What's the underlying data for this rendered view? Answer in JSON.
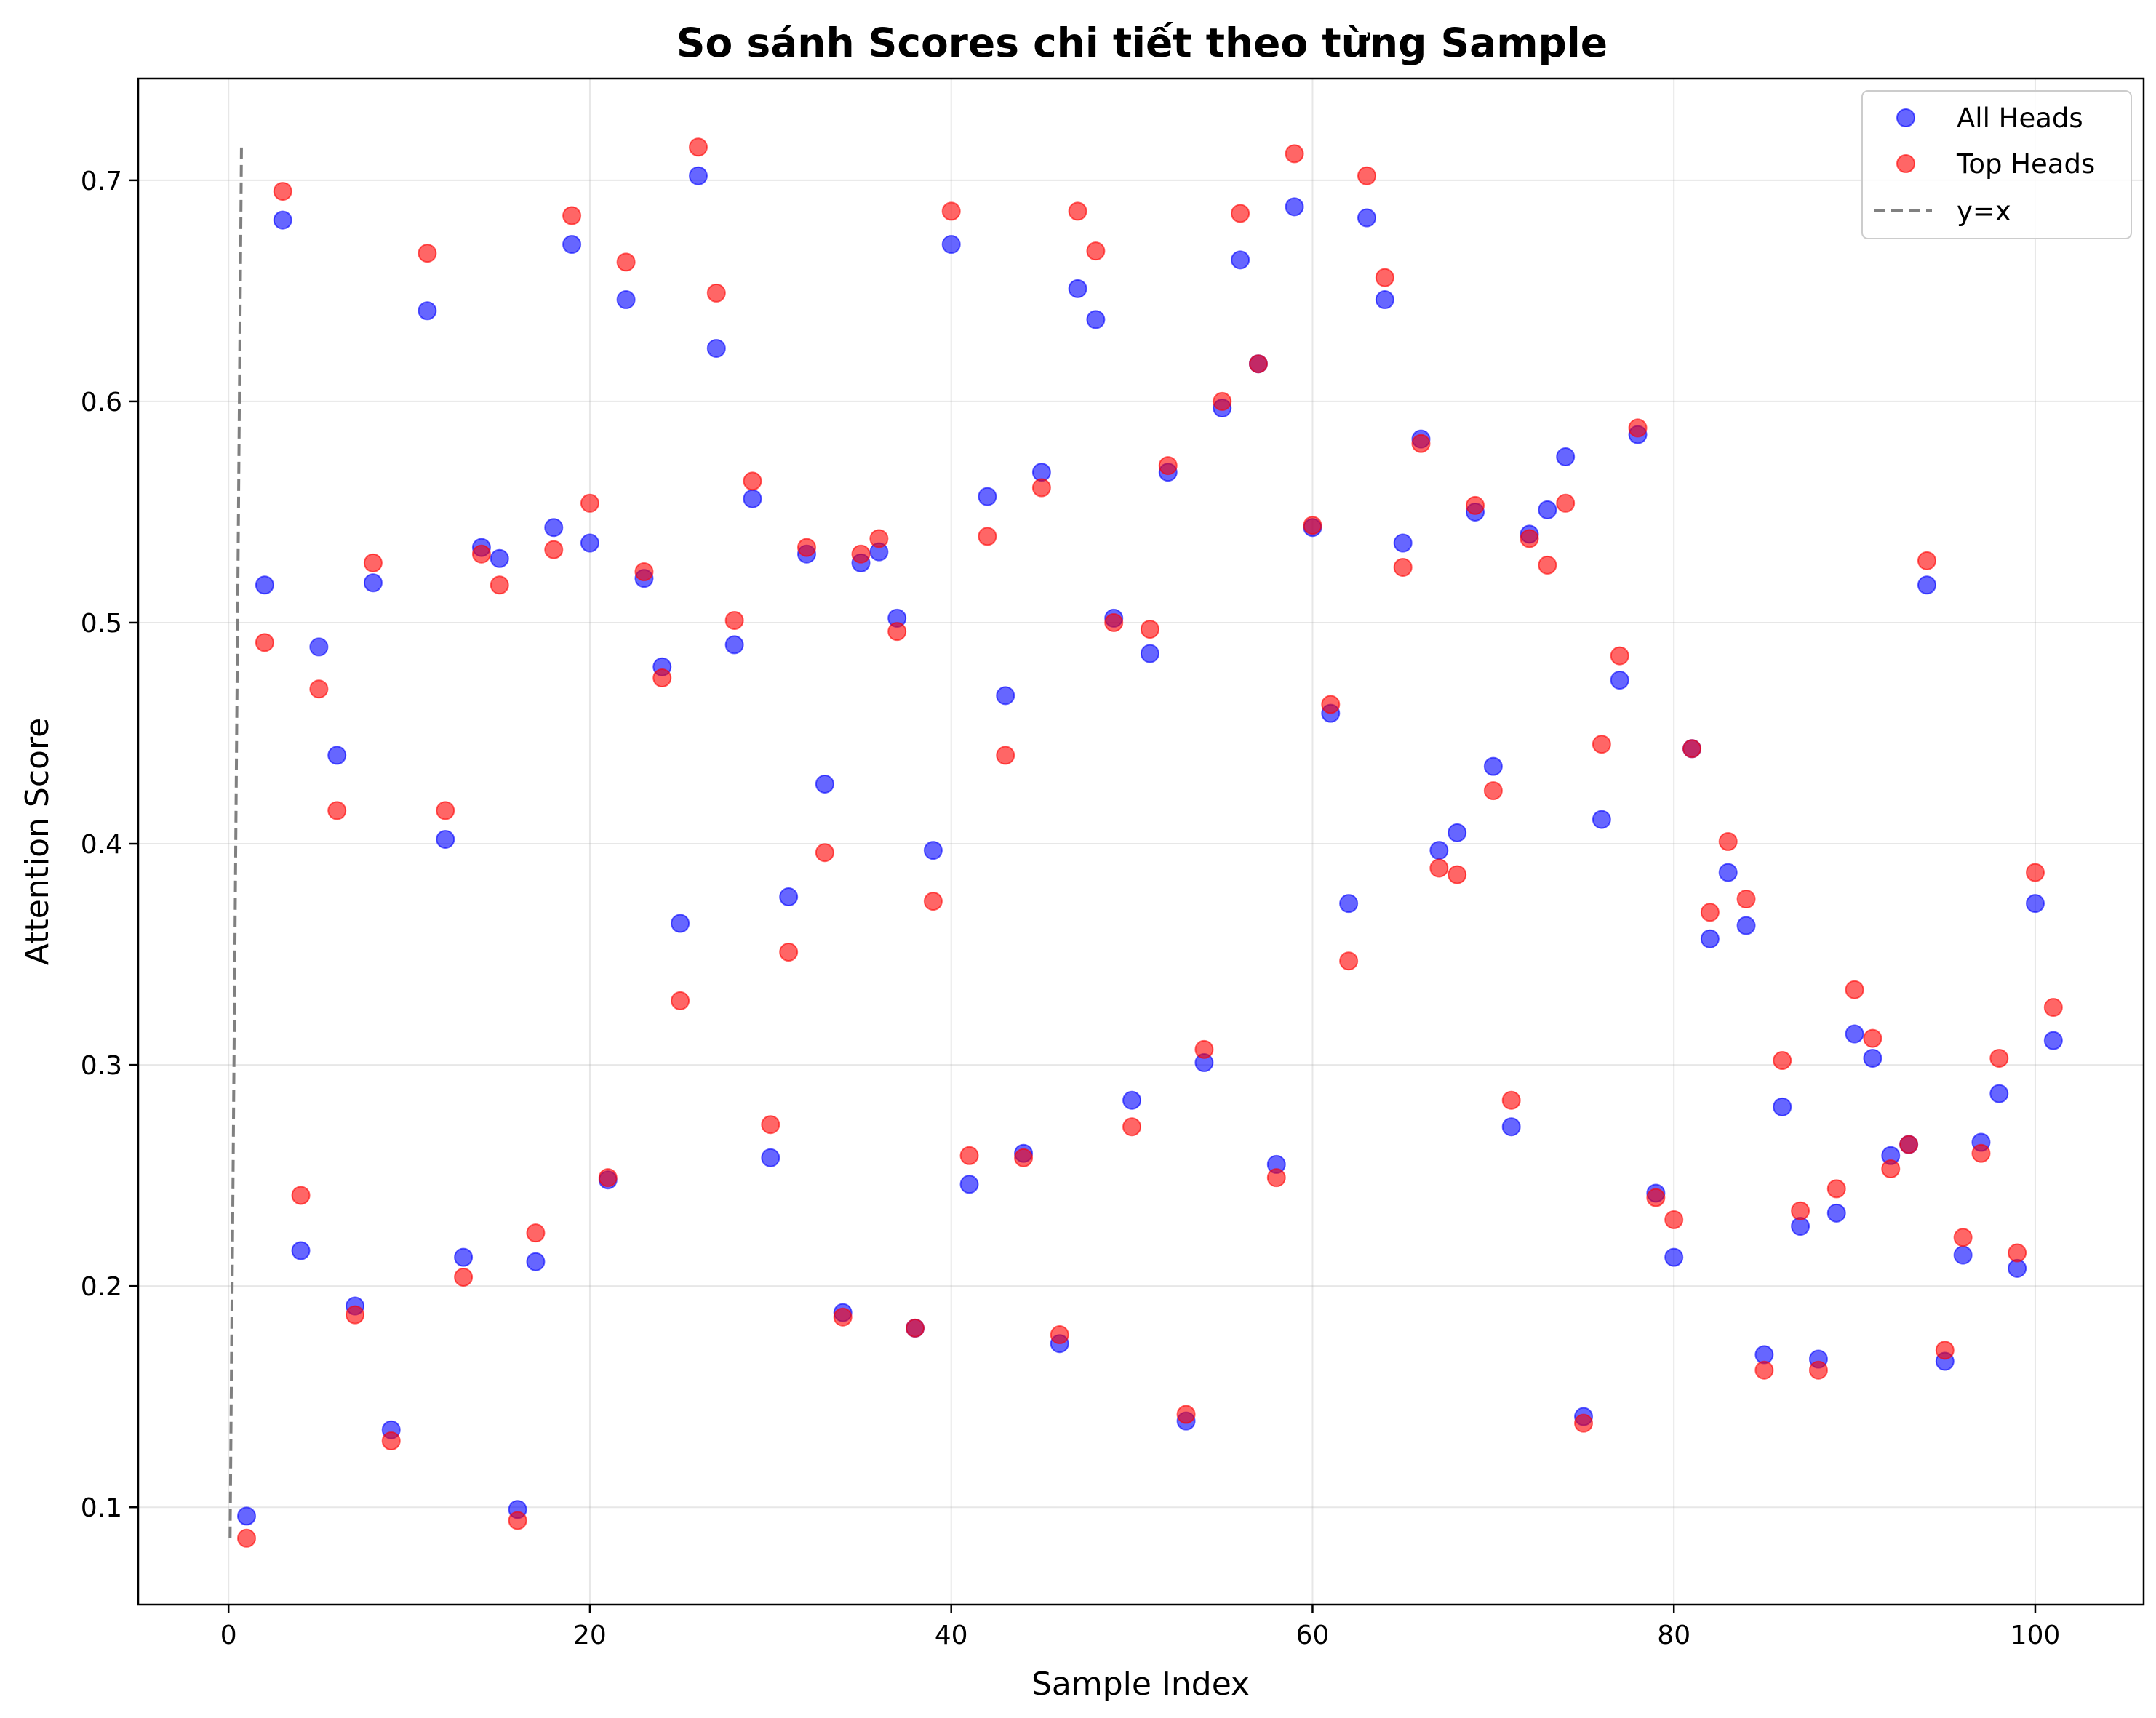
{
  "chart_data": {
    "type": "scatter",
    "title": "So sánh Scores chi tiết theo từng Sample",
    "xlabel": "Sample Index",
    "ylabel": "Attention Score",
    "xlim": [
      -5,
      106
    ],
    "ylim": [
      0.056,
      0.746
    ],
    "xticks": [
      0,
      20,
      40,
      60,
      80,
      100
    ],
    "yticks": [
      0.1,
      0.2,
      0.3,
      0.4,
      0.5,
      0.6,
      0.7
    ],
    "grid": true,
    "legend_position": "top-right",
    "x": [
      1,
      2,
      3,
      4,
      5,
      6,
      7,
      8,
      9,
      11,
      12,
      13,
      14,
      15,
      16,
      17,
      18,
      19,
      20,
      21,
      22,
      23,
      24,
      25,
      26,
      27,
      28,
      29,
      30,
      31,
      32,
      33,
      34,
      35,
      36,
      37,
      38,
      39,
      40,
      41,
      42,
      43,
      44,
      45,
      46,
      47,
      48,
      49,
      50,
      51,
      52,
      53,
      54,
      55,
      56,
      57,
      58,
      59,
      60,
      61,
      62,
      63,
      64,
      65,
      66,
      67,
      68,
      69,
      70,
      71,
      72,
      73,
      74,
      75,
      76,
      77,
      78,
      79,
      80,
      81,
      82,
      83,
      84,
      85,
      86,
      87,
      88,
      89,
      90,
      91,
      92,
      93,
      94,
      95,
      96,
      97,
      98,
      99,
      100,
      101
    ],
    "series": [
      {
        "name": "All Heads",
        "color": "#0000ff",
        "values": [
          0.096,
          0.517,
          0.682,
          0.216,
          0.489,
          0.44,
          0.191,
          0.518,
          0.135,
          0.641,
          0.402,
          0.213,
          0.534,
          0.529,
          0.099,
          0.211,
          0.543,
          0.671,
          0.536,
          0.248,
          0.646,
          0.52,
          0.48,
          0.364,
          0.702,
          0.624,
          0.49,
          0.556,
          0.258,
          0.376,
          0.531,
          0.427,
          0.188,
          0.527,
          0.532,
          0.502,
          0.181,
          0.397,
          0.671,
          0.246,
          0.557,
          0.467,
          0.26,
          0.568,
          0.174,
          0.651,
          0.637,
          0.502,
          0.284,
          0.486,
          0.568,
          0.139,
          0.301,
          0.597,
          0.664,
          0.617,
          0.255,
          0.688,
          0.543,
          0.459,
          0.373,
          0.683,
          0.646,
          0.536,
          0.583,
          0.397,
          0.405,
          0.55,
          0.435,
          0.272,
          0.54,
          0.551,
          0.575,
          0.141,
          0.411,
          0.474,
          0.585,
          0.242,
          0.213,
          0.443,
          0.357,
          0.387,
          0.363,
          0.169,
          0.281,
          0.227,
          0.167,
          0.233,
          0.314,
          0.303,
          0.259,
          0.264,
          0.517,
          0.166,
          0.214,
          0.265,
          0.287,
          0.208,
          0.373,
          0.311
        ]
      },
      {
        "name": "Top Heads",
        "color": "#ff0000",
        "values": [
          0.086,
          0.491,
          0.695,
          0.241,
          0.47,
          0.415,
          0.187,
          0.527,
          0.13,
          0.667,
          0.415,
          0.204,
          0.531,
          0.517,
          0.094,
          0.224,
          0.533,
          0.684,
          0.554,
          0.249,
          0.663,
          0.523,
          0.475,
          0.329,
          0.715,
          0.649,
          0.501,
          0.564,
          0.273,
          0.351,
          0.534,
          0.396,
          0.186,
          0.531,
          0.538,
          0.496,
          0.181,
          0.374,
          0.686,
          0.259,
          0.539,
          0.44,
          0.258,
          0.561,
          0.178,
          0.686,
          0.668,
          0.5,
          0.272,
          0.497,
          0.571,
          0.142,
          0.307,
          0.6,
          0.685,
          0.617,
          0.249,
          0.712,
          0.544,
          0.463,
          0.347,
          0.702,
          0.656,
          0.525,
          0.581,
          0.389,
          0.386,
          0.553,
          0.424,
          0.284,
          0.538,
          0.526,
          0.554,
          0.138,
          0.445,
          0.485,
          0.588,
          0.24,
          0.23,
          0.443,
          0.369,
          0.401,
          0.375,
          0.162,
          0.302,
          0.234,
          0.162,
          0.244,
          0.334,
          0.312,
          0.253,
          0.264,
          0.528,
          0.171,
          0.222,
          0.26,
          0.303,
          0.215,
          0.387,
          0.326
        ]
      }
    ],
    "lines": [
      {
        "name": "y=x",
        "color": "#808080",
        "style": "dashed",
        "x": [
          0.086,
          0.715
        ],
        "y": [
          0.086,
          0.715
        ]
      }
    ]
  }
}
